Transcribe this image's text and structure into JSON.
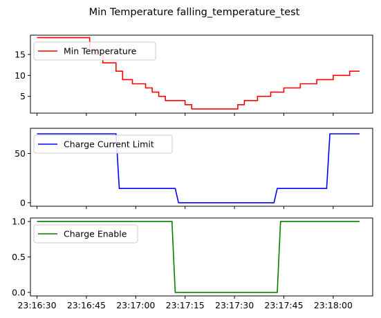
{
  "figure": {
    "title": "Min Temperature falling_temperature_test"
  },
  "chart_data": [
    {
      "type": "line",
      "title": "",
      "xlabel": "",
      "ylabel": "",
      "xlim": [
        "23:16:28",
        "23:18:12"
      ],
      "ylim": [
        1.0,
        19.6
      ],
      "xticks": [
        "23:16:30",
        "23:16:45",
        "23:17:00",
        "23:17:15",
        "23:17:30",
        "23:17:45",
        "23:18:00"
      ],
      "yticks": [
        5,
        10,
        15
      ],
      "legend": "top-left",
      "grid": false,
      "series": [
        {
          "name": "Min Temperature",
          "color": "#ff0000",
          "step": true,
          "x": [
            "23:16:30",
            "23:16:46",
            "23:16:48",
            "23:16:50",
            "23:16:52",
            "23:16:54",
            "23:16:56",
            "23:16:59",
            "23:17:01",
            "23:17:03",
            "23:17:05",
            "23:17:07",
            "23:17:09",
            "23:17:12",
            "23:17:15",
            "23:17:17",
            "23:17:19",
            "23:17:21",
            "23:17:23",
            "23:17:25",
            "23:17:27",
            "23:17:29",
            "23:17:31",
            "23:17:33",
            "23:17:35",
            "23:17:37",
            "23:17:39",
            "23:17:41",
            "23:17:43",
            "23:17:45",
            "23:17:50",
            "23:17:55",
            "23:18:00",
            "23:18:05",
            "23:18:08"
          ],
          "y": [
            19,
            16,
            15,
            13,
            13,
            11,
            9,
            8,
            8,
            7,
            6,
            5,
            4,
            4,
            3,
            2,
            2,
            2,
            2,
            2,
            2,
            2,
            3,
            4,
            4,
            5,
            5,
            6,
            6,
            7,
            8,
            9,
            10,
            11,
            11
          ]
        }
      ]
    },
    {
      "type": "line",
      "title": "",
      "xlabel": "",
      "ylabel": "",
      "xlim": [
        "23:16:28",
        "23:18:12"
      ],
      "ylim": [
        -3.6,
        75.6
      ],
      "xticks": [
        "23:16:30",
        "23:16:45",
        "23:17:00",
        "23:17:15",
        "23:17:30",
        "23:17:45",
        "23:18:00"
      ],
      "yticks": [
        0,
        50
      ],
      "legend": "top-left",
      "grid": false,
      "series": [
        {
          "name": "Charge Current Limit",
          "color": "#0000ff",
          "x": [
            "23:16:30",
            "23:16:54",
            "23:16:55",
            "23:17:12",
            "23:17:13",
            "23:17:42",
            "23:17:43",
            "23:17:58",
            "23:17:59",
            "23:18:08"
          ],
          "y": [
            70,
            70,
            14.5,
            14.5,
            0,
            0,
            14.5,
            14.5,
            70,
            70
          ]
        }
      ]
    },
    {
      "type": "line",
      "title": "",
      "xlabel": "",
      "ylabel": "",
      "xlim": [
        "23:16:28",
        "23:18:12"
      ],
      "ylim": [
        -0.05,
        1.05
      ],
      "xticks": [
        "23:16:30",
        "23:16:45",
        "23:17:00",
        "23:17:15",
        "23:17:30",
        "23:17:45",
        "23:18:00"
      ],
      "yticks": [
        0.0,
        0.5,
        1.0
      ],
      "legend": "top-left",
      "grid": false,
      "series": [
        {
          "name": "Charge Enable",
          "color": "#008000",
          "x": [
            "23:16:30",
            "23:17:11",
            "23:17:12",
            "23:17:43",
            "23:17:44",
            "23:18:08"
          ],
          "y": [
            1,
            1,
            0,
            0,
            1,
            1
          ]
        }
      ]
    }
  ]
}
